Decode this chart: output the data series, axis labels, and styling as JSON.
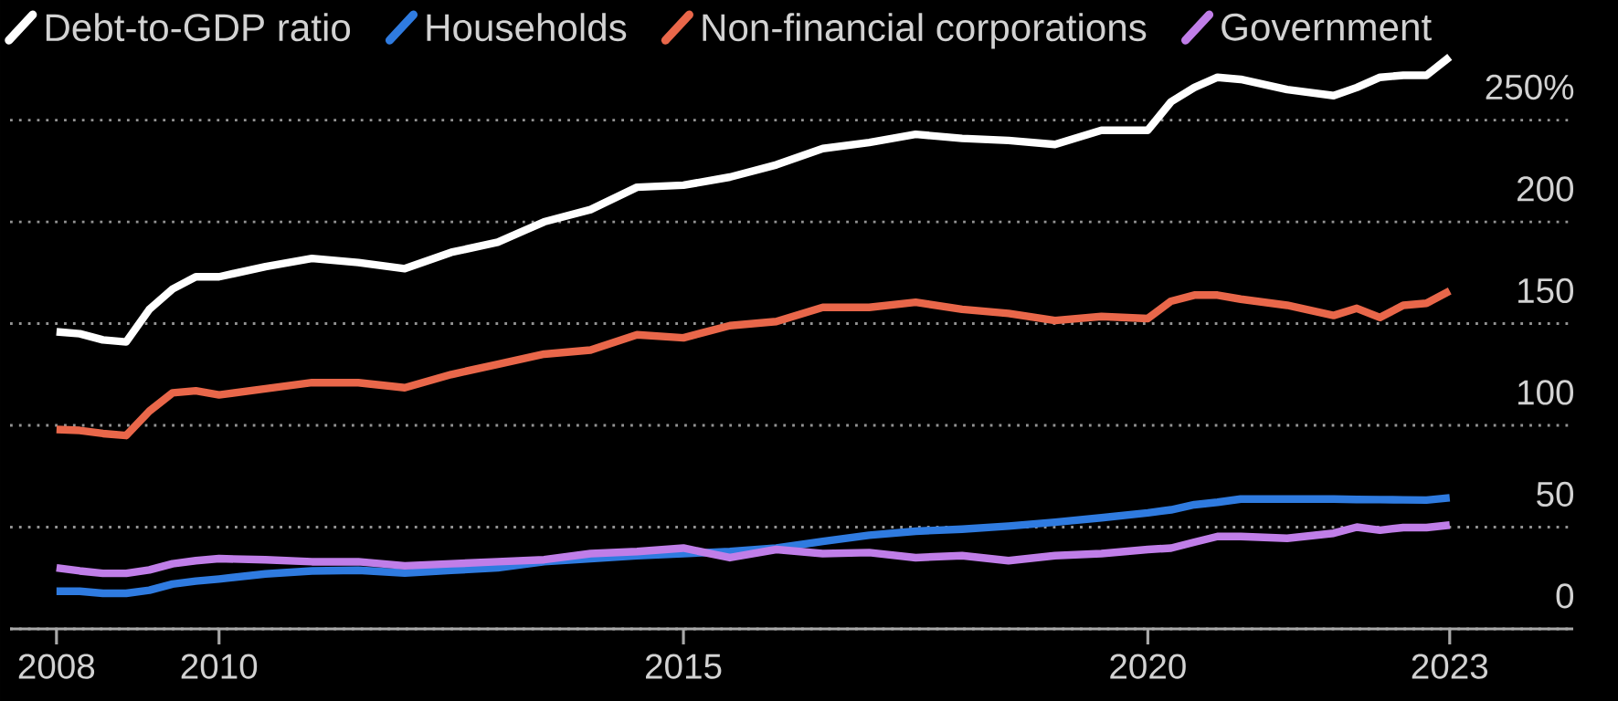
{
  "chart_data": {
    "type": "line",
    "x": [
      2008.25,
      2008.5,
      2008.75,
      2009.0,
      2009.25,
      2009.5,
      2009.75,
      2010.0,
      2010.5,
      2011.0,
      2011.5,
      2012.0,
      2012.5,
      2013.0,
      2013.5,
      2014.0,
      2014.5,
      2015.0,
      2015.5,
      2016.0,
      2016.5,
      2017.0,
      2017.5,
      2018.0,
      2018.5,
      2019.0,
      2019.5,
      2020.0,
      2020.25,
      2020.5,
      2020.75,
      2021.0,
      2021.5,
      2022.0,
      2022.25,
      2022.5,
      2022.75,
      2023.0,
      2023.25
    ],
    "series": [
      {
        "name": "Debt-to-GDP ratio",
        "color": "#ffffff",
        "values": [
          146,
          145,
          142,
          141,
          157,
          167,
          173,
          173,
          178,
          182,
          180,
          177,
          185,
          190,
          200,
          206,
          217,
          218,
          222,
          228,
          236,
          239,
          243,
          241,
          240,
          238,
          245,
          245,
          259,
          266,
          271,
          270,
          265,
          262,
          266,
          271,
          272,
          272,
          281
        ]
      },
      {
        "name": "Households",
        "color": "#2f7be0",
        "values": [
          18.5,
          18.5,
          17.5,
          17.5,
          19,
          22,
          23.5,
          24.5,
          27,
          28.5,
          28.8,
          27.5,
          28.8,
          30,
          33,
          34.5,
          36,
          37,
          38,
          39.7,
          43,
          46,
          48,
          49,
          50.5,
          52.4,
          54.6,
          57,
          58.5,
          61,
          62.2,
          63.8,
          63.8,
          63.8,
          63.6,
          63.5,
          63.4,
          63.3,
          64.4
        ]
      },
      {
        "name": "Non-financial corporations",
        "color": "#e9674a",
        "values": [
          98,
          97.5,
          96,
          95,
          107,
          116,
          117,
          115,
          118,
          121,
          121,
          118.5,
          125,
          130,
          135,
          137,
          144.5,
          143,
          149,
          151,
          158,
          158,
          160.5,
          157,
          155,
          151.5,
          153.5,
          152.5,
          161,
          164,
          164,
          162,
          159,
          154,
          157.5,
          153,
          159,
          160,
          166
        ]
      },
      {
        "name": "Government",
        "color": "#c07ee8",
        "values": [
          30,
          28.5,
          27.3,
          27.3,
          29,
          32,
          33.5,
          34.5,
          34,
          33,
          33,
          31,
          32,
          33,
          34,
          37,
          38,
          39.7,
          35,
          39,
          37,
          37.5,
          35,
          36,
          33.5,
          36,
          37,
          39,
          39.7,
          42.6,
          45.4,
          45.4,
          44.5,
          47,
          50,
          48.5,
          49.8,
          49.8,
          51
        ]
      }
    ],
    "xlim": [
      2007.75,
      2024.58
    ],
    "xticks": [
      {
        "value": 2008.25,
        "label": "2008"
      },
      2010,
      2015,
      2020,
      {
        "value": 2023.25,
        "label": "2023"
      }
    ],
    "ylim": [
      0,
      309
    ],
    "yticks": [
      0,
      50,
      100,
      150,
      200,
      {
        "value": 250,
        "label": "250%"
      }
    ],
    "grid": "y",
    "legend": "top left"
  }
}
